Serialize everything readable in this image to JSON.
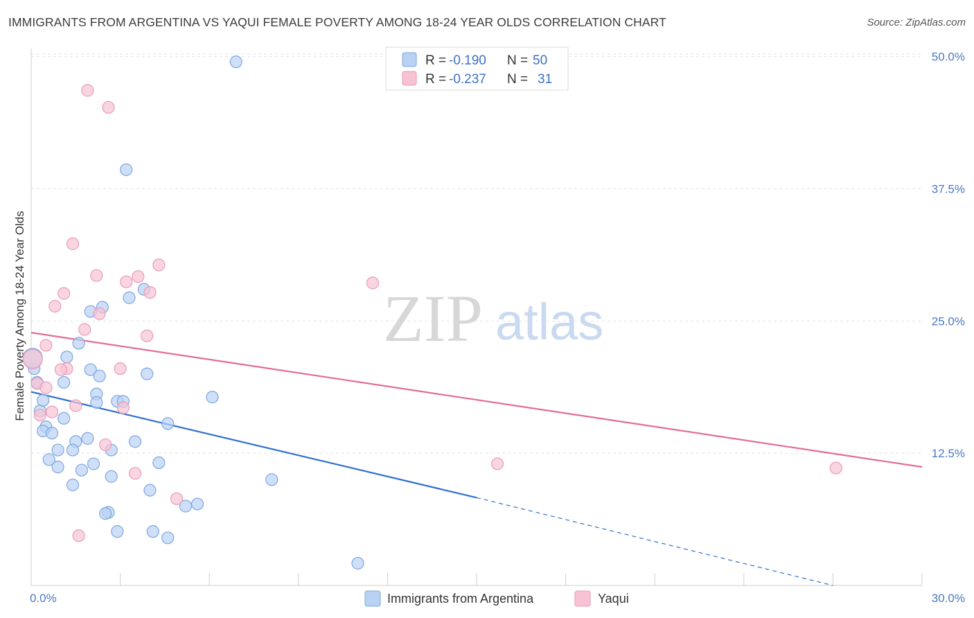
{
  "header": {
    "title": "IMMIGRANTS FROM ARGENTINA VS YAQUI FEMALE POVERTY AMONG 18-24 YEAR OLDS CORRELATION CHART",
    "source": "Source: ZipAtlas.com"
  },
  "watermark": {
    "zip": "ZIP",
    "atlas": "atlas"
  },
  "colors": {
    "blue_fill": "#b9d1f3",
    "blue_stroke": "#7ea7e0",
    "blue_line": "#2f6fcf",
    "pink_fill": "#f7c3d4",
    "pink_stroke": "#eb9ab6",
    "pink_line": "#e36b95",
    "grid": "#e2e2e2",
    "tick_text": "#4a78c2"
  },
  "legend": {
    "r_label": "R = ",
    "n_label": "N = ",
    "series": [
      {
        "r": "-0.190",
        "n": "50"
      },
      {
        "r": "-0.237",
        "n": "31"
      }
    ]
  },
  "chart_data": {
    "type": "scatter",
    "title": "IMMIGRANTS FROM ARGENTINA VS YAQUI FEMALE POVERTY AMONG 18-24 YEAR OLDS CORRELATION CHART",
    "xlabel": "",
    "ylabel": "Female Poverty Among 18-24 Year Olds",
    "xlim": [
      0,
      30
    ],
    "ylim": [
      0,
      50.5
    ],
    "x_tick_labels": [
      {
        "value": 0,
        "label": "0.0%"
      },
      {
        "value": 30,
        "label": "30.0%"
      }
    ],
    "y_tick_labels": [
      {
        "value": 12.5,
        "label": "12.5%"
      },
      {
        "value": 25,
        "label": "25.0%"
      },
      {
        "value": 37.5,
        "label": "37.5%"
      },
      {
        "value": 50,
        "label": "50.0%"
      }
    ],
    "series": [
      {
        "name": "Immigrants from Argentina",
        "color": "blue",
        "r": -0.19,
        "n": 50,
        "trend": {
          "x": [
            0,
            15
          ],
          "y": [
            18.3,
            8.3
          ],
          "dashed_to": [
            27,
            0
          ]
        },
        "points": [
          {
            "x": 6.9,
            "y": 49.5
          },
          {
            "x": 3.2,
            "y": 39.3
          },
          {
            "x": 3.8,
            "y": 28.0
          },
          {
            "x": 3.3,
            "y": 27.2
          },
          {
            "x": 2.4,
            "y": 26.3
          },
          {
            "x": 2.0,
            "y": 25.9
          },
          {
            "x": 1.6,
            "y": 22.9
          },
          {
            "x": 1.2,
            "y": 21.6
          },
          {
            "x": 2.0,
            "y": 20.4
          },
          {
            "x": 2.3,
            "y": 19.8
          },
          {
            "x": 3.9,
            "y": 20.0
          },
          {
            "x": 1.1,
            "y": 19.2
          },
          {
            "x": 2.2,
            "y": 18.1
          },
          {
            "x": 2.2,
            "y": 17.3
          },
          {
            "x": 2.9,
            "y": 17.4
          },
          {
            "x": 3.1,
            "y": 17.4
          },
          {
            "x": 6.1,
            "y": 17.8
          },
          {
            "x": 0.3,
            "y": 16.5
          },
          {
            "x": 1.1,
            "y": 15.8
          },
          {
            "x": 4.6,
            "y": 15.3
          },
          {
            "x": 0.5,
            "y": 15.0
          },
          {
            "x": 0.4,
            "y": 14.6
          },
          {
            "x": 0.7,
            "y": 14.4
          },
          {
            "x": 1.9,
            "y": 13.9
          },
          {
            "x": 1.5,
            "y": 13.6
          },
          {
            "x": 3.5,
            "y": 13.6
          },
          {
            "x": 0.9,
            "y": 12.8
          },
          {
            "x": 2.7,
            "y": 12.8
          },
          {
            "x": 1.4,
            "y": 12.8
          },
          {
            "x": 0.6,
            "y": 11.9
          },
          {
            "x": 4.3,
            "y": 11.6
          },
          {
            "x": 2.1,
            "y": 11.5
          },
          {
            "x": 0.9,
            "y": 11.2
          },
          {
            "x": 1.7,
            "y": 10.9
          },
          {
            "x": 2.7,
            "y": 10.3
          },
          {
            "x": 8.1,
            "y": 10.0
          },
          {
            "x": 1.4,
            "y": 9.5
          },
          {
            "x": 4.0,
            "y": 9.0
          },
          {
            "x": 5.6,
            "y": 7.7
          },
          {
            "x": 5.2,
            "y": 7.5
          },
          {
            "x": 2.6,
            "y": 6.9
          },
          {
            "x": 2.5,
            "y": 6.8
          },
          {
            "x": 4.1,
            "y": 5.1
          },
          {
            "x": 2.9,
            "y": 5.1
          },
          {
            "x": 4.6,
            "y": 4.5
          },
          {
            "x": 11.0,
            "y": 2.1
          },
          {
            "x": 0.1,
            "y": 20.5
          },
          {
            "x": 0.2,
            "y": 19.2
          },
          {
            "x": 0.4,
            "y": 17.5
          },
          {
            "x": 0.05,
            "y": 21.5
          }
        ]
      },
      {
        "name": "Yaqui",
        "color": "pink",
        "r": -0.237,
        "n": 31,
        "trend": {
          "x": [
            0,
            30
          ],
          "y": [
            23.9,
            11.2
          ]
        },
        "points": [
          {
            "x": 1.9,
            "y": 46.8
          },
          {
            "x": 2.6,
            "y": 45.2
          },
          {
            "x": 1.4,
            "y": 32.3
          },
          {
            "x": 4.3,
            "y": 30.3
          },
          {
            "x": 2.2,
            "y": 29.3
          },
          {
            "x": 3.6,
            "y": 29.2
          },
          {
            "x": 3.2,
            "y": 28.7
          },
          {
            "x": 11.5,
            "y": 28.6
          },
          {
            "x": 4.0,
            "y": 27.7
          },
          {
            "x": 1.1,
            "y": 27.6
          },
          {
            "x": 0.8,
            "y": 26.4
          },
          {
            "x": 2.3,
            "y": 25.7
          },
          {
            "x": 1.8,
            "y": 24.2
          },
          {
            "x": 3.9,
            "y": 23.6
          },
          {
            "x": 0.5,
            "y": 22.7
          },
          {
            "x": 1.2,
            "y": 20.5
          },
          {
            "x": 3.0,
            "y": 20.5
          },
          {
            "x": 1.0,
            "y": 20.4
          },
          {
            "x": 0.2,
            "y": 19.1
          },
          {
            "x": 0.5,
            "y": 18.7
          },
          {
            "x": 1.5,
            "y": 17.0
          },
          {
            "x": 3.1,
            "y": 16.8
          },
          {
            "x": 0.7,
            "y": 16.4
          },
          {
            "x": 0.3,
            "y": 16.1
          },
          {
            "x": 2.5,
            "y": 13.3
          },
          {
            "x": 15.7,
            "y": 11.5
          },
          {
            "x": 27.1,
            "y": 11.1
          },
          {
            "x": 3.5,
            "y": 10.6
          },
          {
            "x": 4.9,
            "y": 8.2
          },
          {
            "x": 1.6,
            "y": 4.7
          },
          {
            "x": 0.05,
            "y": 21.4
          }
        ]
      }
    ],
    "legend_position": "top-center"
  }
}
